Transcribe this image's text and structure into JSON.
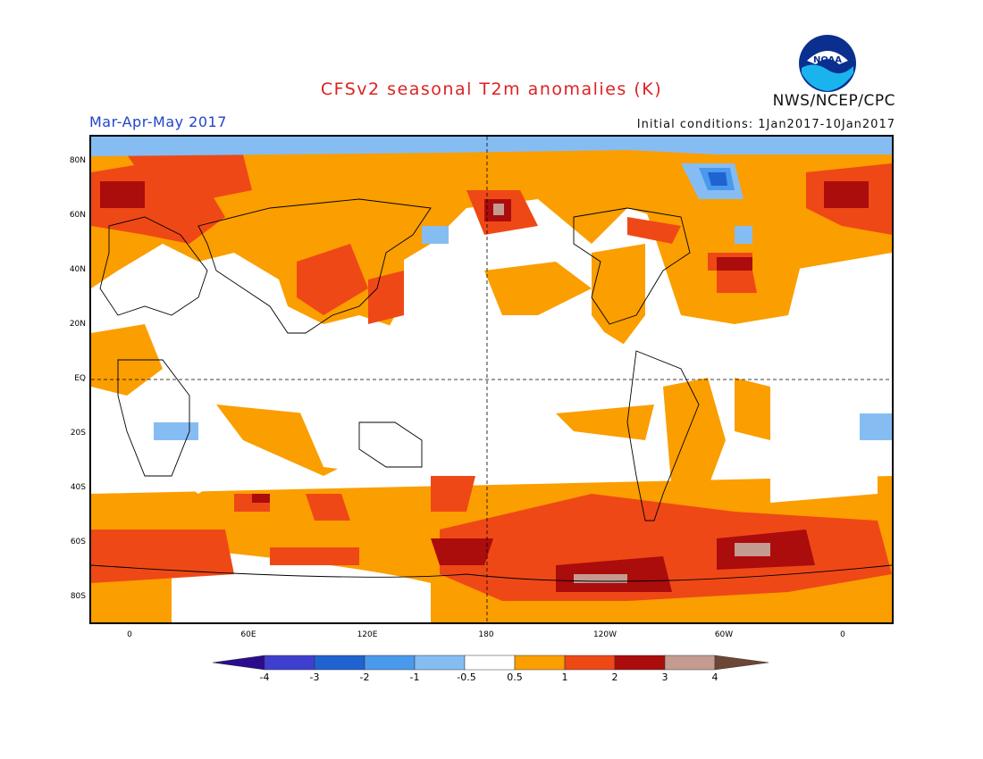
{
  "header": {
    "title": "CFSv2 seasonal T2m anomalies (K)",
    "org": "NWS/NCEP/CPC",
    "season": "Mar-Apr-May 2017",
    "initial_conditions": "Initial conditions: 1Jan2017-10Jan2017",
    "logo_text": "NOAA"
  },
  "colors": {
    "title": "#dd2222",
    "season": "#2244cc",
    "neg4": "#2a0c8c",
    "neg3": "#3f3fcf",
    "neg2": "#1f63d1",
    "neg1": "#4a99ec",
    "neg05": "#85bdf3",
    "white": "#ffffff",
    "pos05": "#fb9e00",
    "pos1": "#ef4817",
    "pos2": "#ab0c0c",
    "pos3": "#c49b91",
    "pos4": "#6e4636"
  },
  "map": {
    "lat_labels": [
      "80N",
      "60N",
      "40N",
      "20N",
      "EQ",
      "20S",
      "40S",
      "60S",
      "80S"
    ],
    "lon_labels": [
      "0",
      "60E",
      "120E",
      "180",
      "120W",
      "60W",
      "0"
    ]
  },
  "colorbar": {
    "labels": [
      "-4",
      "-3",
      "-2",
      "-1",
      "-0.5",
      "0.5",
      "1",
      "2",
      "3",
      "4"
    ]
  }
}
